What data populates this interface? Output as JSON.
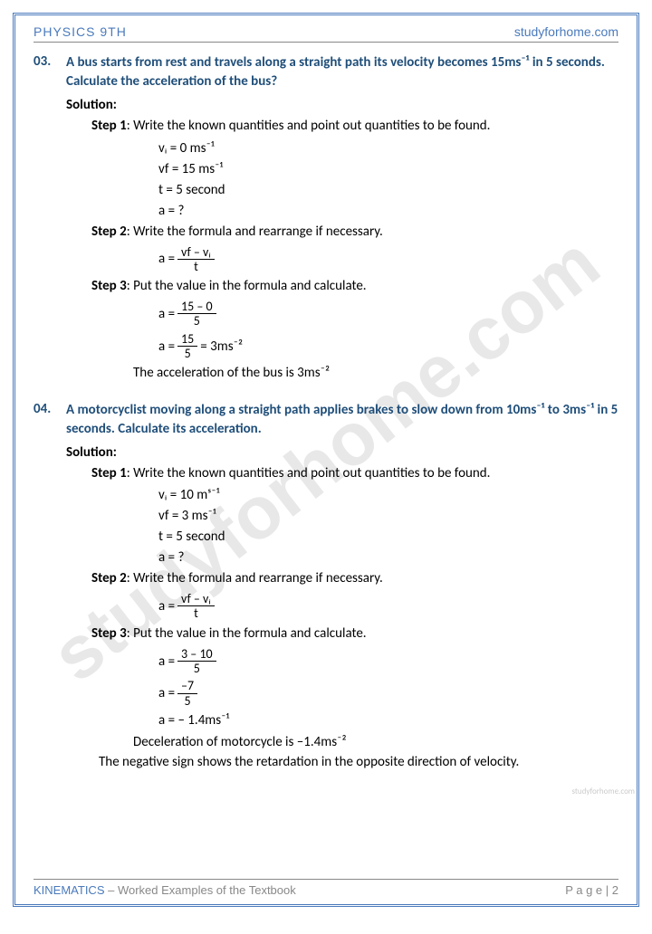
{
  "header": {
    "left": "PHYSICS 9TH",
    "right": "studyforhome.com"
  },
  "footer": {
    "topic": "KINEMATICS",
    "sub": " – Worked Examples of the Textbook",
    "page": "P a g e  | 2"
  },
  "watermark": "studyforhome.com",
  "colors": {
    "accent": "#1f4e79",
    "border": "#4a7abc",
    "text": "#000",
    "gray": "#888"
  },
  "q3": {
    "num": "03.",
    "text": "A bus starts from rest and travels along a straight path its velocity becomes 15ms⁻¹ in 5 seconds. Calculate the acceleration of the bus?",
    "solution": "Solution:",
    "s1": "Step 1",
    "s1t": ": Write the known quantities and point out quantities to be found.",
    "vi": "vᵢ = 0 ms⁻¹",
    "vf": "vf = 15 ms⁻¹",
    "t": "t = 5 second",
    "a": "a = ?",
    "s2": "Step 2",
    "s2t": ": Write the formula and rearrange if necessary.",
    "f_lhs": "a = ",
    "f_num": "vf – vᵢ",
    "f_den": "t",
    "s3": "Step 3",
    "s3t": ": Put the value in the formula and calculate.",
    "c1_lhs": "a = ",
    "c1_num": "15 – 0",
    "c1_den": "5",
    "c2_lhs": "a = ",
    "c2_num": "15",
    "c2_den": "5",
    "c2_rhs": " = 3ms⁻²",
    "result": "The acceleration of the bus is 3ms⁻²"
  },
  "q4": {
    "num": "04.",
    "text": "A motorcyclist moving along a straight path applies brakes to slow down from 10ms⁻¹ to 3ms⁻¹ in 5 seconds. Calculate its acceleration.",
    "solution": "Solution:",
    "s1": "Step 1",
    "s1t": ": Write the known quantities and point out quantities to be found.",
    "vi": "vᵢ = 10 mˢ⁻¹",
    "vf": "vf = 3 ms⁻¹",
    "t": "t = 5 second",
    "a": "a = ?",
    "s2": "Step 2",
    "s2t": ": Write the formula and rearrange if necessary.",
    "f_lhs": "a = ",
    "f_num": "vf – vᵢ",
    "f_den": "t",
    "s3": "Step 3",
    "s3t": ": Put the value in the formula and calculate.",
    "c1_lhs": "a = ",
    "c1_num": "3 – 10",
    "c1_den": "5",
    "c2_lhs": "a = ",
    "c2_num": "–7",
    "c2_den": "5",
    "c3": "a = – 1.4ms⁻¹",
    "result": "Deceleration of motorcycle is –1.4ms⁻²",
    "note": "The negative sign shows the retardation in the opposite direction of velocity."
  }
}
